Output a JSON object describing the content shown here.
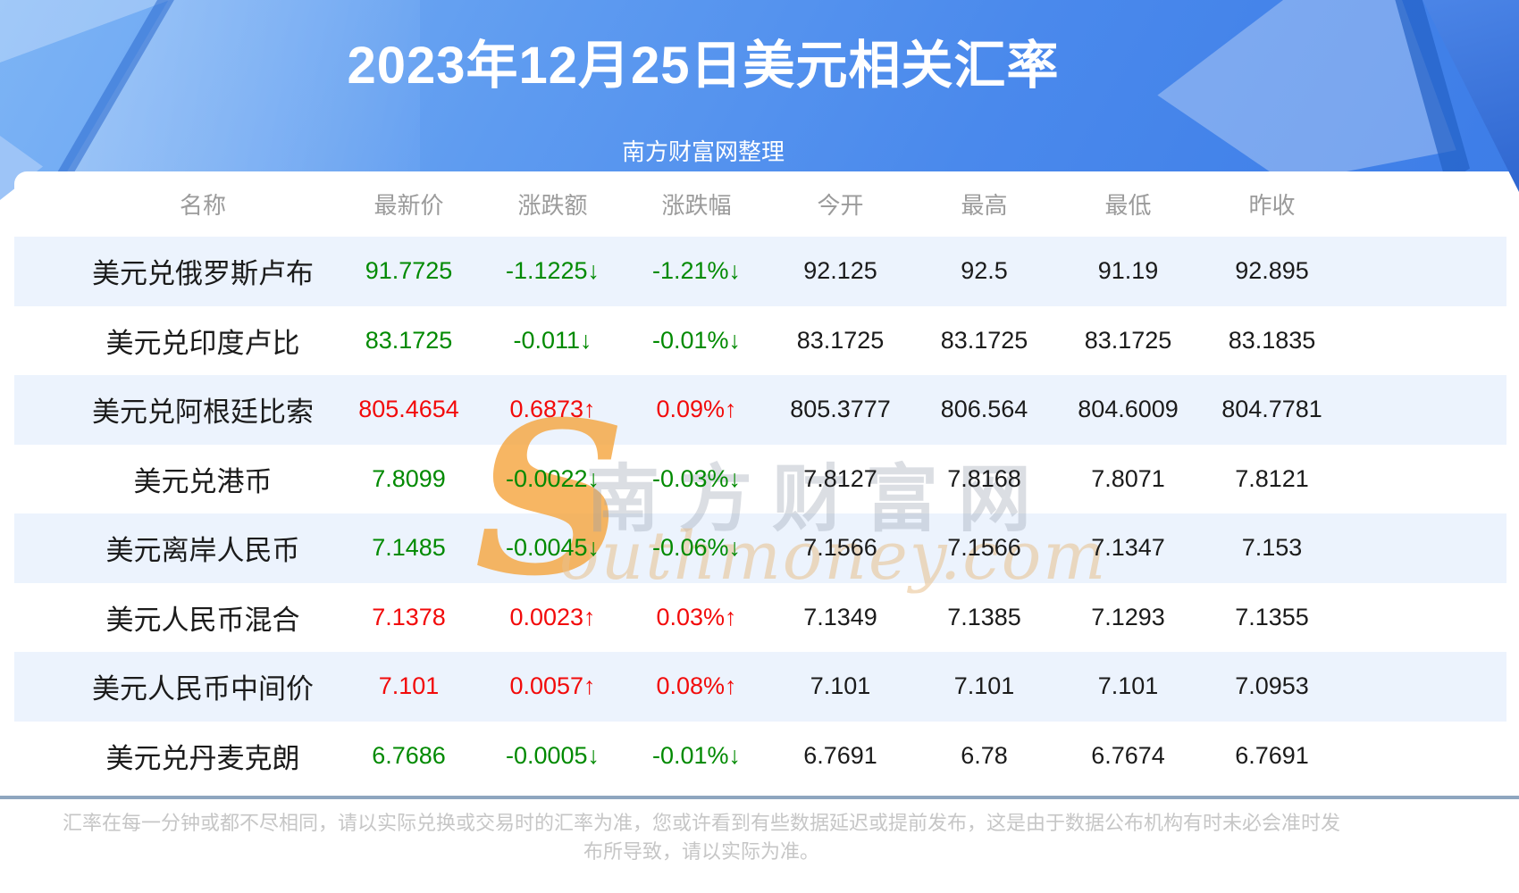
{
  "header": {
    "title": "2023年12月25日美元相关汇率",
    "subtitle": "南方财富网整理"
  },
  "watermark": {
    "s": "S",
    "cn": "南方财富网",
    "en": "outhmoney.com"
  },
  "table": {
    "columns": [
      "名称",
      "最新价",
      "涨跌额",
      "涨跌幅",
      "今开",
      "最高",
      "最低",
      "昨收"
    ],
    "rows": [
      {
        "name": "美元兑俄罗斯卢布",
        "last": "91.7725",
        "change": "-1.1225↓",
        "pct": "-1.21%↓",
        "open": "92.125",
        "high": "92.5",
        "low": "91.19",
        "prev": "92.895",
        "dir": "down"
      },
      {
        "name": "美元兑印度卢比",
        "last": "83.1725",
        "change": "-0.011↓",
        "pct": "-0.01%↓",
        "open": "83.1725",
        "high": "83.1725",
        "low": "83.1725",
        "prev": "83.1835",
        "dir": "down"
      },
      {
        "name": "美元兑阿根廷比索",
        "last": "805.4654",
        "change": "0.6873↑",
        "pct": "0.09%↑",
        "open": "805.3777",
        "high": "806.564",
        "low": "804.6009",
        "prev": "804.7781",
        "dir": "up"
      },
      {
        "name": "美元兑港币",
        "last": "7.8099",
        "change": "-0.0022↓",
        "pct": "-0.03%↓",
        "open": "7.8127",
        "high": "7.8168",
        "low": "7.8071",
        "prev": "7.8121",
        "dir": "down"
      },
      {
        "name": "美元离岸人民币",
        "last": "7.1485",
        "change": "-0.0045↓",
        "pct": "-0.06%↓",
        "open": "7.1566",
        "high": "7.1566",
        "low": "7.1347",
        "prev": "7.153",
        "dir": "down"
      },
      {
        "name": "美元人民币混合",
        "last": "7.1378",
        "change": "0.0023↑",
        "pct": "0.03%↑",
        "open": "7.1349",
        "high": "7.1385",
        "low": "7.1293",
        "prev": "7.1355",
        "dir": "up"
      },
      {
        "name": "美元人民币中间价",
        "last": "7.101",
        "change": "0.0057↑",
        "pct": "0.08%↑",
        "open": "7.101",
        "high": "7.101",
        "low": "7.101",
        "prev": "7.0953",
        "dir": "up"
      },
      {
        "name": "美元兑丹麦克朗",
        "last": "6.7686",
        "change": "-0.0005↓",
        "pct": "-0.01%↓",
        "open": "6.7691",
        "high": "6.78",
        "low": "6.7674",
        "prev": "6.7691",
        "dir": "down"
      }
    ]
  },
  "footer": {
    "disclaimer": "汇率在每一分钟或都不尽相同，请以实际兑换或交易时的汇率为准，您或许看到有些数据延迟或提前发布，这是由于数据公布机构有时未必会准时发布所导致，请以实际为准。"
  },
  "colors": {
    "up_red": "#f20a0a",
    "down_green": "#018a01",
    "banner_blue": "#4a89ec",
    "row_alt_blue": "#ecf3fd",
    "divider_gray_blue": "#8ea6bf"
  },
  "chart_data": {
    "type": "table",
    "title": "2023年12月25日美元相关汇率",
    "subtitle": "南方财富网整理",
    "columns": [
      "名称",
      "最新价",
      "涨跌额",
      "涨跌幅",
      "今开",
      "最高",
      "最低",
      "昨收"
    ],
    "rows": [
      [
        "美元兑俄罗斯卢布",
        91.7725,
        -1.1225,
        "-1.21%",
        92.125,
        92.5,
        91.19,
        92.895
      ],
      [
        "美元兑印度卢比",
        83.1725,
        -0.011,
        "-0.01%",
        83.1725,
        83.1725,
        83.1725,
        83.1835
      ],
      [
        "美元兑阿根廷比索",
        805.4654,
        0.6873,
        "0.09%",
        805.3777,
        806.564,
        804.6009,
        804.7781
      ],
      [
        "美元兑港币",
        7.8099,
        -0.0022,
        "-0.03%",
        7.8127,
        7.8168,
        7.8071,
        7.8121
      ],
      [
        "美元离岸人民币",
        7.1485,
        -0.0045,
        "-0.06%",
        7.1566,
        7.1566,
        7.1347,
        7.153
      ],
      [
        "美元人民币混合",
        7.1378,
        0.0023,
        "0.03%",
        7.1349,
        7.1385,
        7.1293,
        7.1355
      ],
      [
        "美元人民币中间价",
        7.101,
        0.0057,
        "0.08%",
        7.101,
        7.101,
        7.101,
        7.0953
      ],
      [
        "美元兑丹麦克朗",
        6.7686,
        -0.0005,
        "-0.01%",
        6.7691,
        6.78,
        6.7674,
        6.7691
      ]
    ]
  }
}
